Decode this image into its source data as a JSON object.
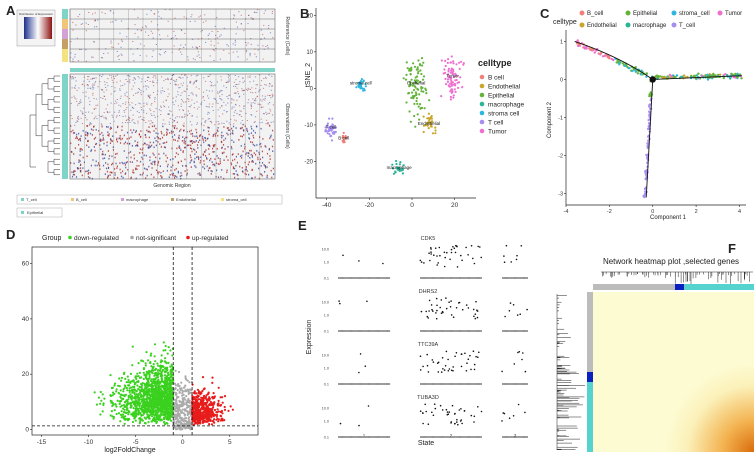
{
  "panels": {
    "a": {
      "letter": "A",
      "ref_axis": "Reference (Cells)",
      "obs_axis": "Observations (Cells)",
      "x_axis": "Genomic Region",
      "colorkey_title": "Distribution of Expression",
      "legend": [
        "T_cell",
        "B_cell",
        "macrophage",
        "Endothelial",
        "stroma_cell"
      ],
      "legend2": "Epithelial"
    },
    "b": {
      "letter": "B",
      "legend_title": "celltype",
      "celltypes": [
        "B cell",
        "Endothelial",
        "Epithelial",
        "macrophage",
        "stroma cell",
        "T cell",
        "Tumor"
      ],
      "colors": [
        "#f0807a",
        "#c8a62a",
        "#63b33a",
        "#2bb597",
        "#2fb6e0",
        "#a68ef0",
        "#ef6fd0"
      ],
      "cluster_labels": [
        "stroma cell",
        "B cell",
        "T cell",
        "Epithelial",
        "Tumor",
        "Endothelial",
        "macrophage"
      ]
    },
    "c": {
      "letter": "C",
      "legend_title": "celltype",
      "legend": [
        "B_cell",
        "Epithelial",
        "stroma_cell",
        "Tumor",
        "Endothelial",
        "macrophage",
        "T_cell"
      ],
      "colors": [
        "#f0807a",
        "#63b33a",
        "#2fb6e0",
        "#ef6fd0",
        "#c8a62a",
        "#2bb597",
        "#a68ef0"
      ]
    },
    "d": {
      "letter": "D",
      "legend_title": "Group",
      "legend": [
        "down-regulated",
        "not-significant",
        "up-regulated"
      ],
      "colors": [
        "#3ad11f",
        "#aaaaaa",
        "#e81c1c"
      ]
    },
    "e": {
      "letter": "E",
      "genes": [
        "CDK5",
        "DHRS2",
        "TTC39A",
        "TUBA3D"
      ],
      "yticks": [
        "10.0",
        "1.0",
        "0.1"
      ],
      "states": [
        "1",
        "2",
        "3"
      ]
    },
    "f": {
      "letter": "F",
      "title": "Network heatmap plot ,selected genes"
    }
  },
  "chart_data": [
    {
      "type": "scatter",
      "panel": "B",
      "xlabel": "",
      "ylabel": "tSNE_2",
      "xlim": [
        -45,
        30
      ],
      "ylim": [
        -30,
        22
      ],
      "xticks": [
        -40,
        -20,
        0,
        20
      ],
      "yticks": [
        -20,
        -10,
        0,
        10,
        20
      ],
      "clusters": [
        {
          "name": "B cell",
          "cx": -32,
          "cy": -14,
          "n": 18
        },
        {
          "name": "T cell",
          "cx": -38,
          "cy": -11,
          "n": 45
        },
        {
          "name": "stroma cell",
          "cx": -24,
          "cy": 1,
          "n": 30
        },
        {
          "name": "Epithelial",
          "cx": 2,
          "cy": 1,
          "n": 90
        },
        {
          "name": "Tumor",
          "cx": 19,
          "cy": 3,
          "n": 80
        },
        {
          "name": "Endothelial",
          "cx": 8,
          "cy": -10,
          "n": 30
        },
        {
          "name": "macrophage",
          "cx": -6,
          "cy": -22,
          "n": 25
        }
      ]
    },
    {
      "type": "line",
      "panel": "C",
      "xlabel": "Component 1",
      "ylabel": "Component 2",
      "xlim": [
        -4,
        4.3
      ],
      "ylim": [
        -3.3,
        1.3
      ],
      "xticks": [
        -4,
        -2,
        0,
        2,
        4
      ],
      "yticks": [
        -3,
        -2,
        -1,
        0,
        1
      ]
    },
    {
      "type": "scatter",
      "panel": "D",
      "xlabel": "log2FoldChange",
      "ylabel": "",
      "xlim": [
        -16,
        8
      ],
      "ylim": [
        -2,
        66
      ],
      "xticks": [
        -15,
        -10,
        -5,
        0,
        5
      ],
      "yticks": [
        0,
        20,
        40,
        60
      ],
      "thresholds": {
        "x": [
          -1,
          1
        ],
        "y": 1.3
      }
    },
    {
      "type": "scatter",
      "panel": "E",
      "xlabel": "State",
      "ylabel": "Expression"
    },
    {
      "type": "heatmap",
      "panel": "F",
      "title": "Network heatmap plot ,selected genes"
    }
  ]
}
